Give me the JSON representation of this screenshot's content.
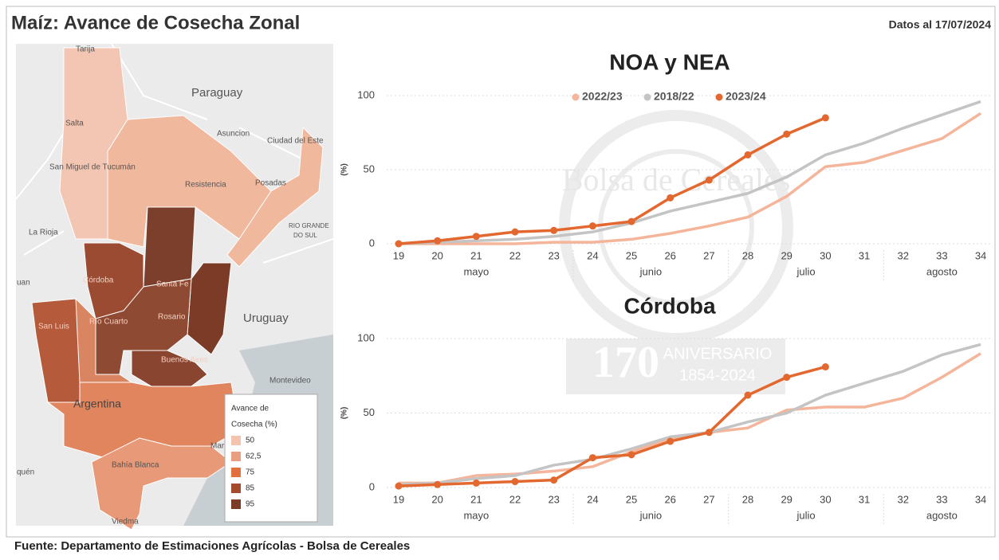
{
  "header": {
    "title": "Maíz: Avance de Cosecha Zonal",
    "date": "Datos al 17/07/2024"
  },
  "footer": {
    "source": "Fuente: Departamento de Estimaciones Agrícolas - Bolsa de Cereales"
  },
  "watermark": {
    "name": "Bolsa de Cereales",
    "number": "170",
    "label": "ANIVERSARIO",
    "years": "1854-2024"
  },
  "map": {
    "labels": [
      "Tarija",
      "Paraguay",
      "Salta",
      "Asuncion",
      "Ciudad del Este",
      "San Miguel de Tucumán",
      "Resistencia",
      "Posadas",
      "La Rioja",
      "RIO GRANDE",
      "DO SUL",
      "Córdoba",
      "Santa Fe",
      "uan",
      "Rosario",
      "Uruguay",
      "San Luis",
      "Río Cuarto",
      "Buenos Aires",
      "Montevideo",
      "Argentina",
      "Mar",
      "Bahía Blanca",
      "quén",
      "Viedma"
    ],
    "legend": {
      "title": "Avance de",
      "title2": "Cosecha (%)",
      "items": [
        {
          "value": 50,
          "color": "#f3c3ae"
        },
        {
          "value": 62.5,
          "label": "62,5",
          "color": "#e89f7f"
        },
        {
          "value": 75,
          "color": "#e2703f"
        },
        {
          "value": 85,
          "color": "#a54a2c"
        },
        {
          "value": 95,
          "color": "#7b3b27"
        }
      ]
    }
  },
  "chart_data": [
    {
      "type": "line",
      "title": "NOA y NEA",
      "ylabel": "(%)",
      "categories": [
        "19",
        "20",
        "21",
        "22",
        "23",
        "24",
        "25",
        "26",
        "27",
        "28",
        "29",
        "30",
        "31",
        "32",
        "33",
        "34"
      ],
      "months": [
        "mayo",
        "junio",
        "julio",
        "agosto"
      ],
      "ylim": [
        0,
        100
      ],
      "yticks": [
        0,
        50,
        100
      ],
      "grid": true,
      "legend": true,
      "series": [
        {
          "name": "2022/23",
          "color": "#f4b59b",
          "markers": false,
          "values": [
            0,
            0,
            0,
            0,
            1,
            1,
            3,
            7,
            12,
            18,
            32,
            52,
            55,
            63,
            71,
            88
          ]
        },
        {
          "name": "2018/22",
          "color": "#c4c4c4",
          "markers": false,
          "values": [
            0,
            1,
            2,
            3,
            5,
            8,
            14,
            22,
            28,
            34,
            45,
            60,
            68,
            78,
            87,
            96
          ]
        },
        {
          "name": "2023/24",
          "color": "#e2682f",
          "markers": true,
          "values": [
            0,
            2,
            5,
            8,
            9,
            12,
            15,
            31,
            43,
            60,
            74,
            85,
            null,
            null,
            null,
            null
          ]
        }
      ]
    },
    {
      "type": "line",
      "title": "Córdoba",
      "ylabel": "(%)",
      "categories": [
        "19",
        "20",
        "21",
        "22",
        "23",
        "24",
        "25",
        "26",
        "27",
        "28",
        "29",
        "30",
        "31",
        "32",
        "33",
        "34"
      ],
      "months": [
        "mayo",
        "junio",
        "julio",
        "agosto"
      ],
      "ylim": [
        0,
        100
      ],
      "yticks": [
        0,
        50,
        100
      ],
      "grid": true,
      "legend": false,
      "series": [
        {
          "name": "2022/23",
          "color": "#f4b59b",
          "markers": false,
          "values": [
            3,
            3,
            8,
            9,
            11,
            14,
            24,
            33,
            37,
            40,
            52,
            54,
            54,
            60,
            74,
            90
          ]
        },
        {
          "name": "2018/22",
          "color": "#c4c4c4",
          "markers": false,
          "values": [
            2,
            3,
            6,
            8,
            15,
            19,
            26,
            34,
            37,
            44,
            50,
            62,
            70,
            78,
            89,
            96
          ]
        },
        {
          "name": "2023/24",
          "color": "#e2682f",
          "markers": true,
          "values": [
            1,
            2,
            3,
            4,
            5,
            20,
            22,
            31,
            37,
            62,
            74,
            81,
            null,
            null,
            null,
            null
          ]
        }
      ]
    }
  ]
}
